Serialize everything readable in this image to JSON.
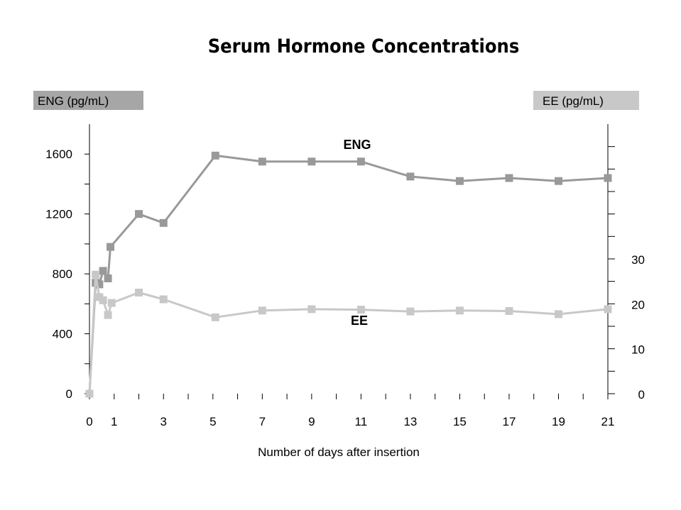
{
  "chart_data": {
    "type": "line",
    "title": "Serum Hormone Concentrations",
    "xlabel": "Number of days after insertion",
    "ylabel_left": "ENG (pg/mL)",
    "ylabel_right": "EE (pg/mL)",
    "x_ticks": [
      "0",
      "1",
      "3",
      "5",
      "7",
      "9",
      "11",
      "13",
      "15",
      "17",
      "19",
      "21"
    ],
    "y_left_ticks": [
      "0",
      "400",
      "800",
      "1200",
      "1600"
    ],
    "y_right_ticks": [
      "0",
      "10",
      "20",
      "30"
    ],
    "xlim": [
      0,
      21
    ],
    "ylim_left": [
      0,
      1800
    ],
    "ylim_right": [
      0,
      60
    ],
    "grid": false,
    "series": [
      {
        "name": "ENG",
        "axis": "left",
        "color": "#999999",
        "points": [
          [
            0,
            0
          ],
          [
            0.25,
            740
          ],
          [
            0.4,
            730
          ],
          [
            0.55,
            820
          ],
          [
            0.75,
            770
          ],
          [
            0.85,
            980
          ],
          [
            2,
            1200
          ],
          [
            3,
            1140
          ],
          [
            5.1,
            1590
          ],
          [
            7,
            1550
          ],
          [
            9,
            1550
          ],
          [
            11,
            1550
          ],
          [
            13,
            1450
          ],
          [
            15,
            1420
          ],
          [
            17,
            1440
          ],
          [
            19,
            1420
          ],
          [
            21,
            1440
          ]
        ]
      },
      {
        "name": "EE",
        "axis": "right",
        "color": "#c8c8c8",
        "points": [
          [
            0,
            0
          ],
          [
            0.25,
            26.5
          ],
          [
            0.4,
            21.5
          ],
          [
            0.55,
            20.8
          ],
          [
            0.75,
            17.5
          ],
          [
            0.9,
            20.2
          ],
          [
            2,
            22.5
          ],
          [
            3,
            21
          ],
          [
            5.1,
            17
          ],
          [
            7,
            18.5
          ],
          [
            9,
            18.8
          ],
          [
            11,
            18.7
          ],
          [
            13,
            18.3
          ],
          [
            15,
            18.5
          ],
          [
            17,
            18.4
          ],
          [
            19,
            17.7
          ],
          [
            21,
            18.8
          ]
        ]
      }
    ]
  }
}
